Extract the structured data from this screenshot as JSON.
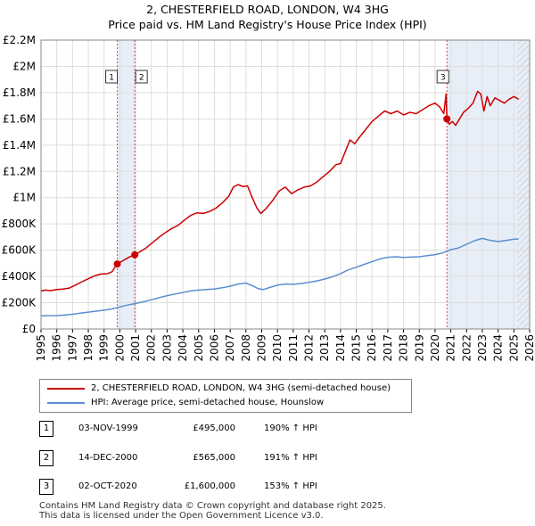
{
  "chart_data": {
    "type": "line",
    "title": "2, CHESTERFIELD ROAD, LONDON, W4 3HG",
    "subtitle": "Price paid vs. HM Land Registry's House Price Index (HPI)",
    "x_ticks": [
      "1995",
      "1996",
      "1997",
      "1998",
      "1999",
      "2000",
      "2001",
      "2002",
      "2003",
      "2004",
      "2005",
      "2006",
      "2007",
      "2008",
      "2009",
      "2010",
      "2011",
      "2012",
      "2013",
      "2014",
      "2015",
      "2016",
      "2017",
      "2018",
      "2019",
      "2020",
      "2021",
      "2022",
      "2023",
      "2024",
      "2025",
      "2026"
    ],
    "y_ticks": [
      "£0",
      "£200K",
      "£400K",
      "£600K",
      "£800K",
      "£1M",
      "£1.2M",
      "£1.4M",
      "£1.6M",
      "£1.8M",
      "£2M",
      "£2.2M"
    ],
    "xlim": [
      1995,
      2026
    ],
    "ylim": [
      0,
      2200000
    ],
    "grid": true,
    "colors": {
      "property": "#cc0000",
      "hpi": "#5b8fd0",
      "shade": "#e8eef8",
      "vline": "#cc0000"
    },
    "shaded_regions": [
      [
        1999.84,
        2001.0
      ],
      [
        2020.75,
        2026
      ]
    ],
    "hatched_future_from": 2025.2,
    "series": [
      {
        "name": "2, CHESTERFIELD ROAD, LONDON, W4 3HG (semi-detached house)",
        "color": "#cc0000",
        "points": [
          [
            1995.0,
            290000
          ],
          [
            1995.3,
            296000
          ],
          [
            1995.6,
            292000
          ],
          [
            1996.0,
            300000
          ],
          [
            1996.4,
            304000
          ],
          [
            1996.8,
            312000
          ],
          [
            1997.2,
            335000
          ],
          [
            1997.6,
            360000
          ],
          [
            1998.0,
            382000
          ],
          [
            1998.4,
            405000
          ],
          [
            1998.8,
            418000
          ],
          [
            1999.2,
            420000
          ],
          [
            1999.5,
            435000
          ],
          [
            1999.84,
            495000
          ],
          [
            2000.2,
            520000
          ],
          [
            2000.6,
            548000
          ],
          [
            2000.95,
            565000
          ],
          [
            2001.3,
            590000
          ],
          [
            2001.7,
            620000
          ],
          [
            2002.1,
            660000
          ],
          [
            2002.5,
            700000
          ],
          [
            2002.9,
            735000
          ],
          [
            2003.3,
            765000
          ],
          [
            2003.7,
            790000
          ],
          [
            2004.1,
            830000
          ],
          [
            2004.5,
            865000
          ],
          [
            2004.9,
            885000
          ],
          [
            2005.3,
            880000
          ],
          [
            2005.7,
            895000
          ],
          [
            2006.1,
            920000
          ],
          [
            2006.5,
            960000
          ],
          [
            2006.9,
            1010000
          ],
          [
            2007.2,
            1080000
          ],
          [
            2007.5,
            1100000
          ],
          [
            2007.8,
            1085000
          ],
          [
            2008.1,
            1090000
          ],
          [
            2008.4,
            1000000
          ],
          [
            2008.7,
            920000
          ],
          [
            2008.95,
            880000
          ],
          [
            2009.3,
            920000
          ],
          [
            2009.7,
            980000
          ],
          [
            2010.1,
            1050000
          ],
          [
            2010.5,
            1080000
          ],
          [
            2010.9,
            1030000
          ],
          [
            2011.3,
            1060000
          ],
          [
            2011.7,
            1080000
          ],
          [
            2012.1,
            1090000
          ],
          [
            2012.5,
            1120000
          ],
          [
            2012.9,
            1160000
          ],
          [
            2013.3,
            1200000
          ],
          [
            2013.7,
            1250000
          ],
          [
            2014.0,
            1260000
          ],
          [
            2014.3,
            1350000
          ],
          [
            2014.6,
            1440000
          ],
          [
            2014.9,
            1410000
          ],
          [
            2015.2,
            1460000
          ],
          [
            2015.6,
            1520000
          ],
          [
            2016.0,
            1580000
          ],
          [
            2016.4,
            1620000
          ],
          [
            2016.8,
            1660000
          ],
          [
            2017.2,
            1640000
          ],
          [
            2017.6,
            1660000
          ],
          [
            2018.0,
            1630000
          ],
          [
            2018.4,
            1650000
          ],
          [
            2018.8,
            1640000
          ],
          [
            2019.2,
            1670000
          ],
          [
            2019.6,
            1700000
          ],
          [
            2020.0,
            1720000
          ],
          [
            2020.3,
            1690000
          ],
          [
            2020.55,
            1640000
          ],
          [
            2020.7,
            1790000
          ],
          [
            2020.75,
            1600000
          ],
          [
            2020.9,
            1560000
          ],
          [
            2021.1,
            1580000
          ],
          [
            2021.3,
            1550000
          ],
          [
            2021.5,
            1590000
          ],
          [
            2021.8,
            1650000
          ],
          [
            2022.1,
            1680000
          ],
          [
            2022.4,
            1720000
          ],
          [
            2022.7,
            1810000
          ],
          [
            2022.9,
            1790000
          ],
          [
            2023.1,
            1660000
          ],
          [
            2023.3,
            1770000
          ],
          [
            2023.5,
            1700000
          ],
          [
            2023.8,
            1760000
          ],
          [
            2024.1,
            1740000
          ],
          [
            2024.4,
            1720000
          ],
          [
            2024.7,
            1750000
          ],
          [
            2025.0,
            1770000
          ],
          [
            2025.3,
            1750000
          ]
        ]
      },
      {
        "name": "HPI: Average price, semi-detached house, Hounslow",
        "color": "#5b8fd0",
        "points": [
          [
            1995.0,
            100000
          ],
          [
            1995.5,
            101000
          ],
          [
            1996.0,
            102000
          ],
          [
            1996.5,
            106000
          ],
          [
            1997.0,
            112000
          ],
          [
            1997.5,
            120000
          ],
          [
            1998.0,
            128000
          ],
          [
            1998.5,
            136000
          ],
          [
            1999.0,
            143000
          ],
          [
            1999.5,
            152000
          ],
          [
            2000.0,
            168000
          ],
          [
            2000.5,
            182000
          ],
          [
            2001.0,
            194000
          ],
          [
            2001.5,
            207000
          ],
          [
            2002.0,
            222000
          ],
          [
            2002.5,
            238000
          ],
          [
            2003.0,
            254000
          ],
          [
            2003.5,
            266000
          ],
          [
            2004.0,
            278000
          ],
          [
            2004.5,
            290000
          ],
          [
            2005.0,
            296000
          ],
          [
            2005.5,
            300000
          ],
          [
            2006.0,
            305000
          ],
          [
            2006.5,
            314000
          ],
          [
            2007.0,
            326000
          ],
          [
            2007.5,
            342000
          ],
          [
            2008.0,
            350000
          ],
          [
            2008.4,
            330000
          ],
          [
            2008.8,
            306000
          ],
          [
            2009.1,
            300000
          ],
          [
            2009.5,
            316000
          ],
          [
            2010.0,
            334000
          ],
          [
            2010.5,
            342000
          ],
          [
            2011.0,
            340000
          ],
          [
            2011.5,
            346000
          ],
          [
            2012.0,
            356000
          ],
          [
            2012.5,
            366000
          ],
          [
            2013.0,
            380000
          ],
          [
            2013.5,
            398000
          ],
          [
            2014.0,
            422000
          ],
          [
            2014.5,
            450000
          ],
          [
            2015.0,
            470000
          ],
          [
            2015.5,
            492000
          ],
          [
            2016.0,
            512000
          ],
          [
            2016.5,
            534000
          ],
          [
            2017.0,
            546000
          ],
          [
            2017.5,
            550000
          ],
          [
            2018.0,
            545000
          ],
          [
            2018.5,
            548000
          ],
          [
            2019.0,
            550000
          ],
          [
            2019.5,
            558000
          ],
          [
            2020.0,
            566000
          ],
          [
            2020.5,
            580000
          ],
          [
            2021.0,
            604000
          ],
          [
            2021.5,
            618000
          ],
          [
            2022.0,
            645000
          ],
          [
            2022.5,
            672000
          ],
          [
            2023.0,
            690000
          ],
          [
            2023.5,
            675000
          ],
          [
            2024.0,
            666000
          ],
          [
            2024.5,
            674000
          ],
          [
            2025.0,
            684000
          ],
          [
            2025.3,
            686000
          ]
        ]
      }
    ],
    "markers": [
      {
        "label": "1",
        "x": 1999.84,
        "y": 495000
      },
      {
        "label": "2",
        "x": 2000.95,
        "y": 565000
      },
      {
        "label": "3",
        "x": 2020.75,
        "y": 1600000
      }
    ]
  },
  "legend": {
    "property_label": "2, CHESTERFIELD ROAD, LONDON, W4 3HG (semi-detached house)",
    "hpi_label": "HPI: Average price, semi-detached house, Hounslow"
  },
  "sales": [
    {
      "num": "1",
      "date": "03-NOV-1999",
      "price": "£495,000",
      "pct": "190% ↑ HPI"
    },
    {
      "num": "2",
      "date": "14-DEC-2000",
      "price": "£565,000",
      "pct": "191% ↑ HPI"
    },
    {
      "num": "3",
      "date": "02-OCT-2020",
      "price": "£1,600,000",
      "pct": "153% ↑ HPI"
    }
  ],
  "footer": {
    "line1": "Contains HM Land Registry data © Crown copyright and database right 2025.",
    "line2": "This data is licensed under the Open Government Licence v3.0."
  }
}
